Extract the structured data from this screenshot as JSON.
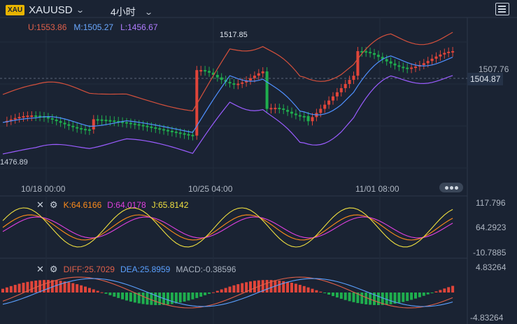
{
  "header": {
    "symbol_badge": "XAU",
    "symbol": "XAUUSD",
    "timeframe": "4小时",
    "chevron_icon": "chevron-down-icon",
    "settings_icon": "settings-panel-icon"
  },
  "bollinger": {
    "upper": "U:1553.86",
    "middle": "M:1505.27",
    "lower": "L:1456.67"
  },
  "price_panel": {
    "high_label": "1517.85",
    "low_label": "1476.89",
    "right_axis_label": "1507.76",
    "current_price": "1504.87",
    "x_labels": [
      "10/18 00:00",
      "10/25 04:00",
      "11/01 08:00"
    ]
  },
  "kdj": {
    "k": "K:64.6166",
    "d": "D:64.0178",
    "j": "J:65.8142",
    "axis": [
      "117.796",
      "64.2923",
      "-10.7885"
    ]
  },
  "macd": {
    "diff": "DIFF:25.7029",
    "dea": "DEA:25.8959",
    "macd": "MACD:-0.38596",
    "axis": [
      "4.83264",
      "-4.83264"
    ]
  },
  "colors": {
    "background": "#1a2333",
    "up": "#e0453a",
    "down": "#1fae4e",
    "upper_band": "#d4503c",
    "middle_band": "#4f90ff",
    "lower_band": "#9a5cff",
    "k_line": "#ff8c1a",
    "d_line": "#e040e0",
    "j_line": "#f0e040"
  }
}
